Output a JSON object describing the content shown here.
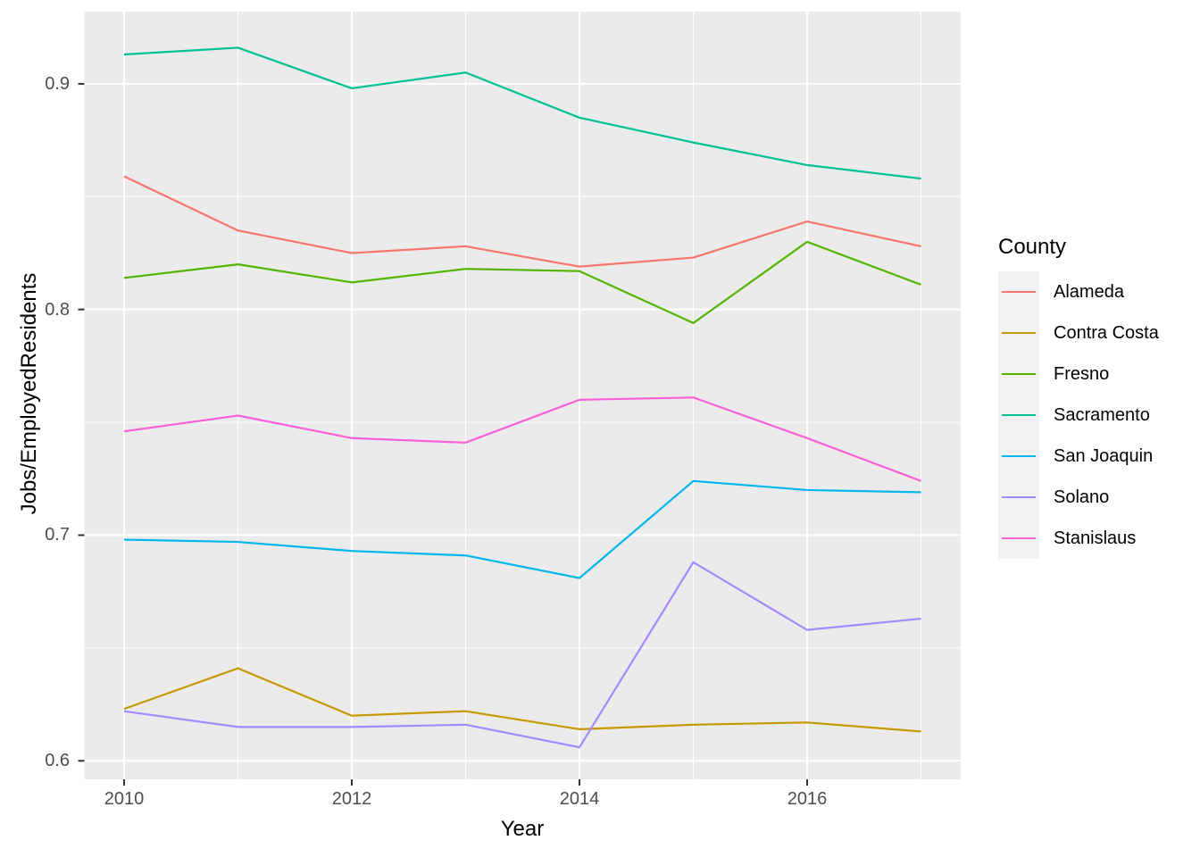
{
  "figure": {
    "background": "#FFFFFF",
    "panel_background": "#EBEBEB",
    "gridline_color": "#FFFFFF",
    "tick_mark_color": "#333333",
    "tick_label_color": "#4D4D4D",
    "title_color": "#000000"
  },
  "legend": {
    "title": "County",
    "position": "right",
    "key_fill": "#F2F2F2",
    "items": [
      {
        "label": "Alameda",
        "color": "#F8766D"
      },
      {
        "label": "Contra Costa",
        "color": "#C49A00"
      },
      {
        "label": "Fresno",
        "color": "#53B400"
      },
      {
        "label": "Sacramento",
        "color": "#00C094"
      },
      {
        "label": "San Joaquin",
        "color": "#00B6EB"
      },
      {
        "label": "Solano",
        "color": "#A58AFF"
      },
      {
        "label": "Stanislaus",
        "color": "#FB61D7"
      }
    ]
  },
  "chart_data": {
    "type": "line",
    "title": "",
    "xlabel": "Year",
    "ylabel": "Jobs/EmployedResidents",
    "x": [
      2010,
      2011,
      2012,
      2013,
      2014,
      2015,
      2016,
      2017
    ],
    "series": [
      {
        "name": "Alameda",
        "color": "#F8766D",
        "values": [
          0.859,
          0.835,
          0.825,
          0.828,
          0.819,
          0.823,
          0.839,
          0.828
        ]
      },
      {
        "name": "Contra Costa",
        "color": "#C49A00",
        "values": [
          0.623,
          0.641,
          0.62,
          0.622,
          0.614,
          0.616,
          0.617,
          0.613
        ]
      },
      {
        "name": "Fresno",
        "color": "#53B400",
        "values": [
          0.814,
          0.82,
          0.812,
          0.818,
          0.817,
          0.794,
          0.83,
          0.811
        ]
      },
      {
        "name": "Sacramento",
        "color": "#00C094",
        "values": [
          0.913,
          0.916,
          0.898,
          0.905,
          0.885,
          0.874,
          0.864,
          0.858
        ]
      },
      {
        "name": "San Joaquin",
        "color": "#00B6EB",
        "values": [
          0.698,
          0.697,
          0.693,
          0.691,
          0.681,
          0.724,
          0.72,
          0.719
        ]
      },
      {
        "name": "Solano",
        "color": "#A58AFF",
        "values": [
          0.622,
          0.615,
          0.615,
          0.616,
          0.606,
          0.688,
          0.658,
          0.663
        ]
      },
      {
        "name": "Stanislaus",
        "color": "#FB61D7",
        "values": [
          0.746,
          0.753,
          0.743,
          0.741,
          0.76,
          0.761,
          0.743,
          0.724
        ]
      }
    ],
    "x_ticks": [
      2010,
      2012,
      2014,
      2016
    ],
    "x_minor_ticks": [
      2011,
      2013,
      2015,
      2017
    ],
    "y_ticks": [
      0.6,
      0.7,
      0.8,
      0.9
    ],
    "y_minor_ticks": [
      0.65,
      0.75,
      0.85
    ],
    "xlim": [
      2009.651,
      2017.349
    ],
    "ylim": [
      0.5918,
      0.932
    ],
    "grid": true,
    "legend_position": "right"
  }
}
